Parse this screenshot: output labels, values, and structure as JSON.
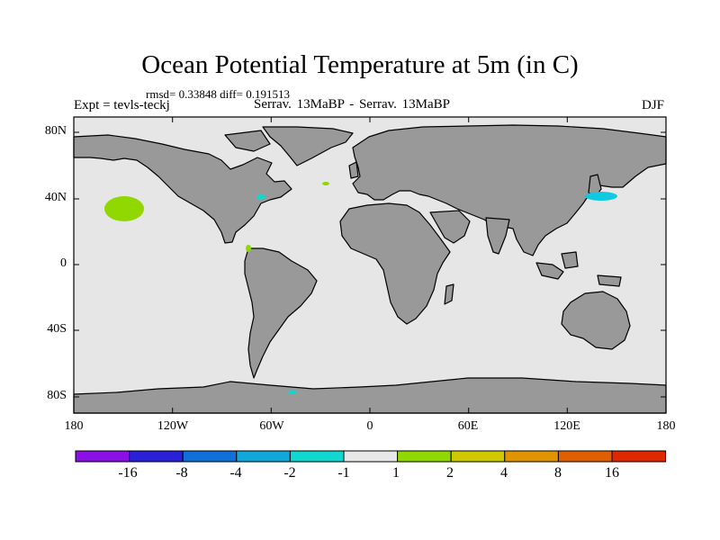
{
  "map": {
    "title": "Ocean Potential Temperature at 5m (in C)",
    "stats": "rmsd= 0.33848 diff= 0.191513",
    "experiment": "Expt = tevls-teckj",
    "comparison": "Serrav.   13MaBP - Serrav.   13MaBP",
    "season": "DJF",
    "y_ticks": [
      "80N",
      "40N",
      "0",
      "40S",
      "80S"
    ],
    "x_ticks": [
      "180",
      "120W",
      "60W",
      "0",
      "60E",
      "120E",
      "180"
    ],
    "colors": {
      "ocean": "#e6e6e6",
      "land": "#999999",
      "coast": "#000000"
    }
  },
  "colorbar": {
    "labels": [
      "-16",
      "-8",
      "-4",
      "-2",
      "-1",
      "1",
      "2",
      "4",
      "8",
      "16"
    ],
    "colors": [
      "#8a10e6",
      "#2a20d8",
      "#1070d8",
      "#10a8d8",
      "#10d8d0",
      "#e8e8e8",
      "#90d800",
      "#d0c800",
      "#e09400",
      "#e06000",
      "#e02800"
    ]
  },
  "anomalies": [
    {
      "label": "north-pacific-warm",
      "color": "#90d800"
    },
    {
      "label": "central-america-warm",
      "color": "#90d800"
    },
    {
      "label": "north-atlantic-warm",
      "color": "#90d800"
    },
    {
      "label": "us-east-coast-cool",
      "color": "#10d8d0"
    },
    {
      "label": "japan-cool",
      "color": "#10d8d0"
    },
    {
      "label": "antarctic-cool",
      "color": "#10d8d0"
    }
  ]
}
